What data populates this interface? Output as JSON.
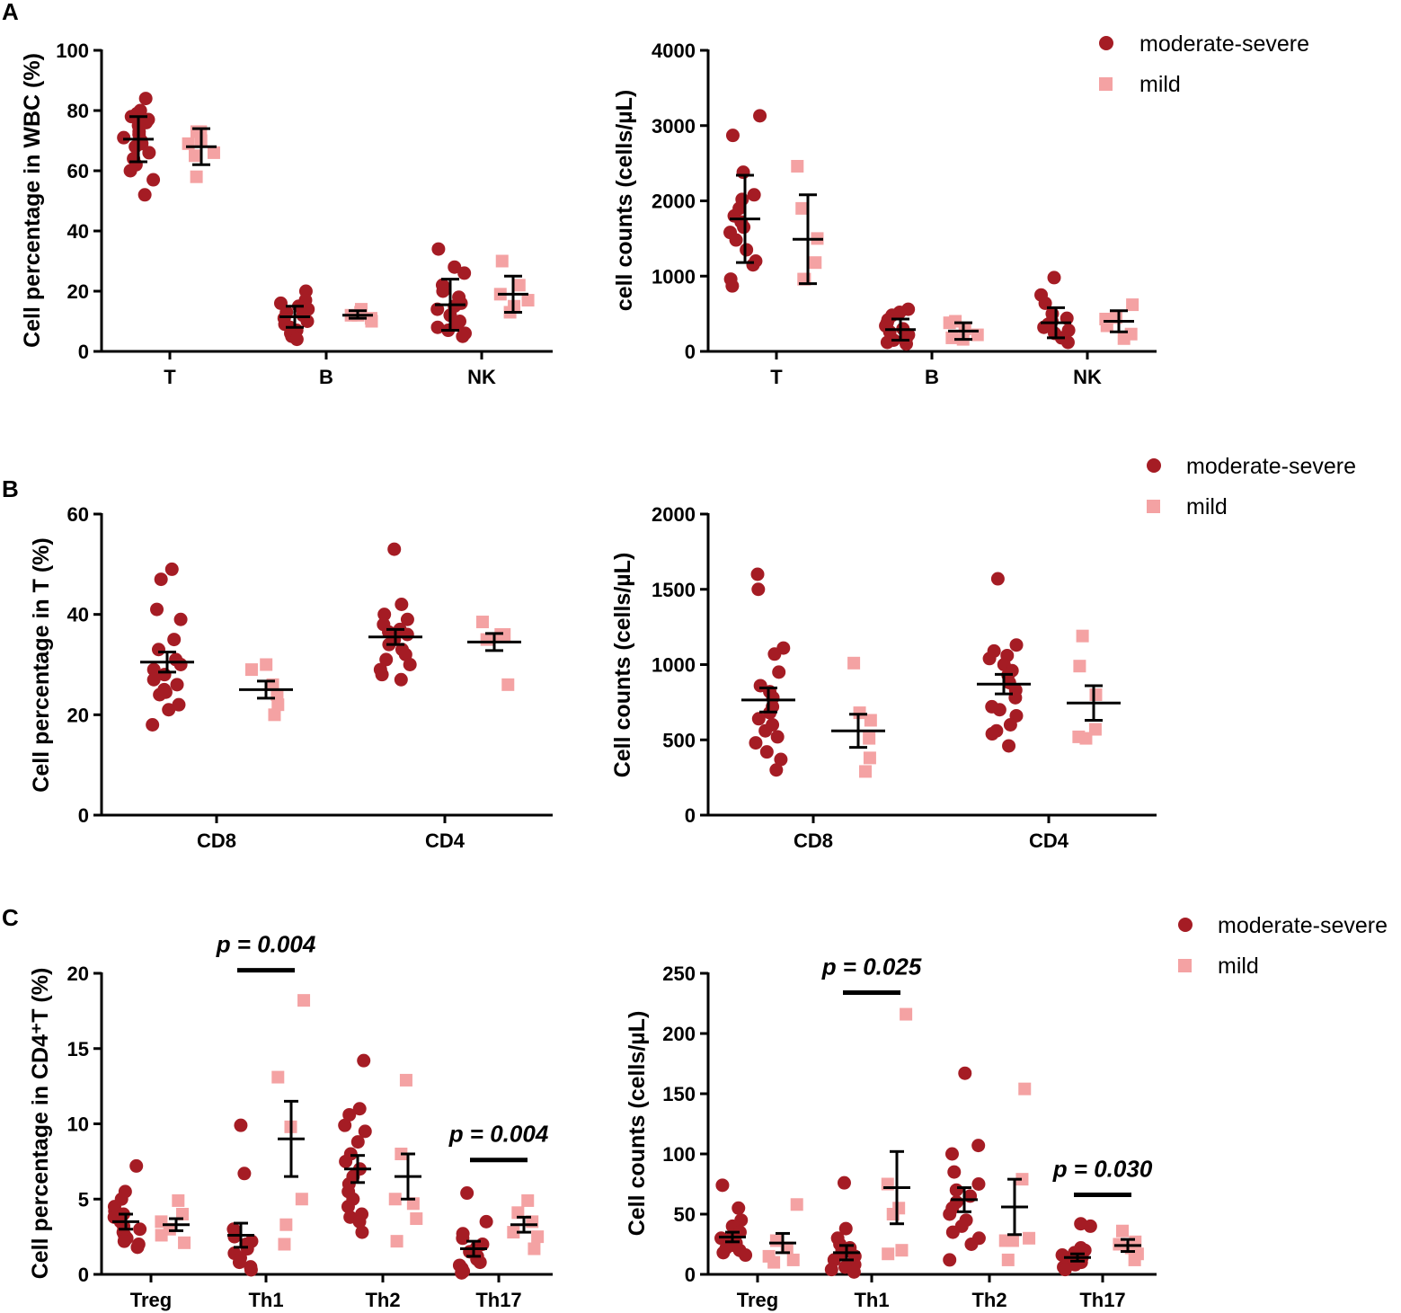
{
  "colors": {
    "moderate_severe": "#a51c24",
    "mild": "#f4a2a3",
    "axis": "#000000"
  },
  "legend_marker_icons": {
    "moderate_severe": "circle-marker-icon",
    "mild": "square-marker-icon"
  },
  "panels": [
    {
      "letter": "A",
      "legend": {
        "moderate_severe": "moderate-severe",
        "mild": "mild"
      }
    },
    {
      "letter": "B",
      "legend": {
        "moderate_severe": "moderate-severe",
        "mild": "mild"
      }
    },
    {
      "letter": "C",
      "legend": {
        "moderate_severe": "moderate-severe",
        "mild": "mild"
      }
    }
  ],
  "chart_data": [
    {
      "id": "A-left",
      "type": "scatter",
      "ylabel": "Cell percentage in WBC (%)",
      "ylim": [
        0,
        100
      ],
      "yticks": [
        0,
        20,
        40,
        60,
        80,
        100
      ],
      "categories": [
        "T",
        "B",
        "NK"
      ],
      "series": [
        {
          "name": "moderate-severe",
          "marker": "circle",
          "points": [
            [
              84,
              80,
              79,
              78,
              77,
              76,
              75,
              73,
              72,
              71,
              70,
              69,
              68,
              66,
              64,
              62,
              60,
              57,
              52
            ],
            [
              20,
              17,
              16,
              15,
              14,
              13,
              12,
              11,
              10,
              9,
              8,
              7,
              6,
              5,
              4
            ],
            [
              34,
              28,
              26,
              22,
              20,
              18,
              16,
              15,
              14,
              12,
              10,
              9,
              8,
              7,
              6,
              5
            ]
          ],
          "mean": [
            70.5,
            11.5,
            15.5
          ],
          "err_low": [
            63,
            8,
            7
          ],
          "err_high": [
            78,
            15,
            24
          ]
        },
        {
          "name": "mild",
          "marker": "square",
          "points": [
            [
              73,
              73,
              70,
              69,
              66,
              65,
              58
            ],
            [
              14,
              13,
              12,
              12,
              11,
              10
            ],
            [
              30,
              22,
              19,
              17,
              15,
              13
            ]
          ],
          "mean": [
            68,
            12,
            19
          ],
          "err_low": [
            62,
            11,
            13
          ],
          "err_high": [
            74,
            13.5,
            25
          ]
        }
      ]
    },
    {
      "id": "A-right",
      "type": "scatter",
      "ylabel": "cell counts (cells/µL)",
      "ylim": [
        0,
        4000
      ],
      "yticks": [
        0,
        1000,
        2000,
        3000,
        4000
      ],
      "categories": [
        "T",
        "B",
        "NK"
      ],
      "series": [
        {
          "name": "moderate-severe",
          "marker": "circle",
          "points": [
            [
              3130,
              2870,
              2380,
              2080,
              2020,
              1900,
              1800,
              1720,
              1650,
              1580,
              1480,
              1350,
              1200,
              1150,
              960,
              870
            ],
            [
              560,
              520,
              480,
              420,
              380,
              340,
              300,
              260,
              220,
              180,
              150,
              120,
              100
            ],
            [
              980,
              750,
              640,
              500,
              440,
              400,
              360,
              320,
              280,
              240,
              180,
              120
            ]
          ],
          "mean": [
            1760,
            290,
            380
          ],
          "err_low": [
            1180,
            150,
            180
          ],
          "err_high": [
            2340,
            430,
            580
          ]
        },
        {
          "name": "mild",
          "marker": "square",
          "points": [
            [
              2460,
              1900,
              1500,
              1180,
              960,
              960
            ],
            [
              400,
              380,
              300,
              220,
              180,
              160
            ],
            [
              620,
              450,
              430,
              340,
              230,
              170
            ]
          ],
          "mean": [
            1490,
            270,
            400
          ],
          "err_low": [
            900,
            160,
            260
          ],
          "err_high": [
            2080,
            380,
            540
          ]
        }
      ]
    },
    {
      "id": "B-left",
      "type": "scatter",
      "ylabel": "Cell percentage in T (%)",
      "ylim": [
        0,
        60
      ],
      "yticks": [
        0,
        20,
        40,
        60
      ],
      "categories": [
        "CD8",
        "CD4"
      ],
      "series": [
        {
          "name": "moderate-severe",
          "marker": "circle",
          "points": [
            [
              49,
              47,
              41,
              39,
              35,
              33,
              31,
              30,
              29,
              28,
              27,
              26,
              25,
              24.5,
              24,
              22,
              21,
              18
            ],
            [
              53,
              42,
              40,
              39,
              38,
              37,
              36.5,
              36,
              35,
              34,
              33,
              32,
              31,
              30,
              29,
              28,
              27
            ]
          ],
          "mean": [
            30.5,
            35.5
          ],
          "err_low": [
            28.5,
            34
          ],
          "err_high": [
            32.5,
            37
          ]
        },
        {
          "name": "mild",
          "marker": "square",
          "points": [
            [
              30,
              29,
              26,
              24,
              22,
              20
            ],
            [
              38.5,
              36,
              36,
              36,
              35,
              26
            ]
          ],
          "mean": [
            25,
            34.5
          ],
          "err_low": [
            23.3,
            32.8
          ],
          "err_high": [
            26.7,
            36.2
          ]
        }
      ]
    },
    {
      "id": "B-right",
      "type": "scatter",
      "ylabel": "Cell counts (cells/µL)",
      "ylim": [
        0,
        2000
      ],
      "yticks": [
        0,
        500,
        1000,
        1500,
        2000
      ],
      "categories": [
        "CD8",
        "CD4"
      ],
      "series": [
        {
          "name": "moderate-severe",
          "marker": "circle",
          "points": [
            [
              1600,
              1500,
              1110,
              1070,
              950,
              860,
              820,
              780,
              720,
              680,
              640,
              600,
              560,
              520,
              480,
              420,
              370,
              300
            ],
            [
              1570,
              1130,
              1090,
              1060,
              1040,
              1000,
              960,
              930,
              880,
              830,
              780,
              720,
              700,
              660,
              600,
              560,
              540,
              460
            ]
          ],
          "mean": [
            765,
            870
          ],
          "err_low": [
            685,
            805
          ],
          "err_high": [
            845,
            935
          ]
        },
        {
          "name": "mild",
          "marker": "square",
          "points": [
            [
              1010,
              680,
              630,
              510,
              380,
              290
            ],
            [
              1190,
              990,
              800,
              570,
              520,
              510
            ]
          ],
          "mean": [
            560,
            745
          ],
          "err_low": [
            450,
            630
          ],
          "err_high": [
            670,
            860
          ]
        }
      ]
    },
    {
      "id": "C-left",
      "type": "scatter",
      "ylabel": "Cell percentage in CD4⁺T (%)",
      "ylim": [
        0,
        20
      ],
      "yticks": [
        0,
        5,
        10,
        15,
        20
      ],
      "categories": [
        "Treg",
        "Th1",
        "Th2",
        "Th17"
      ],
      "series": [
        {
          "name": "moderate-severe",
          "marker": "circle",
          "points": [
            [
              7.2,
              5.5,
              5.0,
              4.5,
              4.2,
              4.0,
              3.8,
              3.5,
              3.2,
              3.0,
              2.8,
              2.6,
              2.4,
              2.2,
              2.0,
              1.8
            ],
            [
              9.9,
              6.7,
              3.0,
              2.8,
              2.5,
              2.2,
              2.0,
              1.7,
              1.4,
              1.1,
              0.8,
              0.5,
              0.3
            ],
            [
              14.2,
              11.0,
              10.6,
              9.9,
              9.5,
              8.8,
              8.0,
              7.5,
              7.0,
              6.5,
              6.0,
              5.5,
              5.0,
              4.5,
              4.0,
              3.8,
              3.5,
              2.8
            ],
            [
              5.4,
              3.5,
              2.7,
              2.4,
              2.0,
              1.8,
              1.5,
              1.2,
              1.0,
              0.8,
              0.6,
              0.4,
              0.2,
              0.1
            ]
          ],
          "mean": [
            3.5,
            2.6,
            7.0,
            1.7
          ],
          "err_low": [
            3.0,
            1.8,
            6.1,
            1.2
          ],
          "err_high": [
            4.0,
            3.4,
            7.9,
            2.2
          ]
        },
        {
          "name": "mild",
          "marker": "square",
          "points": [
            [
              4.9,
              4.0,
              3.5,
              3.0,
              2.6,
              2.1
            ],
            [
              18.2,
              13.1,
              9.8,
              5.0,
              3.3,
              2.0
            ],
            [
              12.9,
              8.0,
              5.0,
              4.7,
              3.7,
              2.2
            ],
            [
              4.9,
              4.1,
              3.5,
              2.8,
              2.5,
              1.7
            ]
          ],
          "mean": [
            3.3,
            9.0,
            6.5,
            3.3
          ],
          "err_low": [
            2.9,
            6.5,
            5.0,
            2.8
          ],
          "err_high": [
            3.7,
            11.5,
            8.0,
            3.8
          ]
        }
      ],
      "annotations": [
        {
          "text": "p = 0.004",
          "between": [
            "Th1",
            "Th1"
          ],
          "y_level": 20.2
        },
        {
          "text": "p = 0.004",
          "between": [
            "Th17",
            "Th17"
          ],
          "y_level": 7.6
        }
      ]
    },
    {
      "id": "C-right",
      "type": "scatter",
      "ylabel": "Cell counts (cells/µL)",
      "ylim": [
        0,
        250
      ],
      "yticks": [
        0,
        50,
        100,
        150,
        200,
        250
      ],
      "categories": [
        "Treg",
        "Th1",
        "Th2",
        "Th17"
      ],
      "series": [
        {
          "name": "moderate-severe",
          "marker": "circle",
          "points": [
            [
              74,
              55,
              45,
              40,
              35,
              32,
              30,
              28,
              26,
              24,
              22,
              20,
              18,
              16
            ],
            [
              76,
              38,
              30,
              25,
              22,
              20,
              18,
              15,
              12,
              10,
              8,
              6,
              4,
              2
            ],
            [
              167,
              107,
              100,
              85,
              75,
              70,
              65,
              60,
              55,
              50,
              45,
              40,
              35,
              30,
              25,
              12
            ],
            [
              42,
              40,
              22,
              20,
              18,
              16,
              14,
              12,
              10,
              8,
              6,
              4
            ]
          ],
          "mean": [
            31,
            18,
            62,
            14
          ],
          "err_low": [
            27,
            12,
            52,
            11
          ],
          "err_high": [
            35,
            24,
            72,
            17
          ]
        },
        {
          "name": "mild",
          "marker": "square",
          "points": [
            [
              58,
              28,
              22,
              15,
              12,
              10
            ],
            [
              216,
              75,
              55,
              50,
              20,
              17
            ],
            [
              154,
              79,
              30,
              28,
              28,
              12
            ],
            [
              36,
              27,
              25,
              22,
              17,
              12
            ]
          ],
          "mean": [
            26,
            72,
            56,
            24
          ],
          "err_low": [
            18,
            42,
            33,
            19
          ],
          "err_high": [
            34,
            102,
            79,
            29
          ]
        }
      ],
      "annotations": [
        {
          "text": "p = 0.025",
          "between": [
            "Th1",
            "Th1"
          ],
          "y_level": 234
        },
        {
          "text": "p = 0.030",
          "between": [
            "Th17",
            "Th17"
          ],
          "y_level": 66
        }
      ]
    }
  ]
}
